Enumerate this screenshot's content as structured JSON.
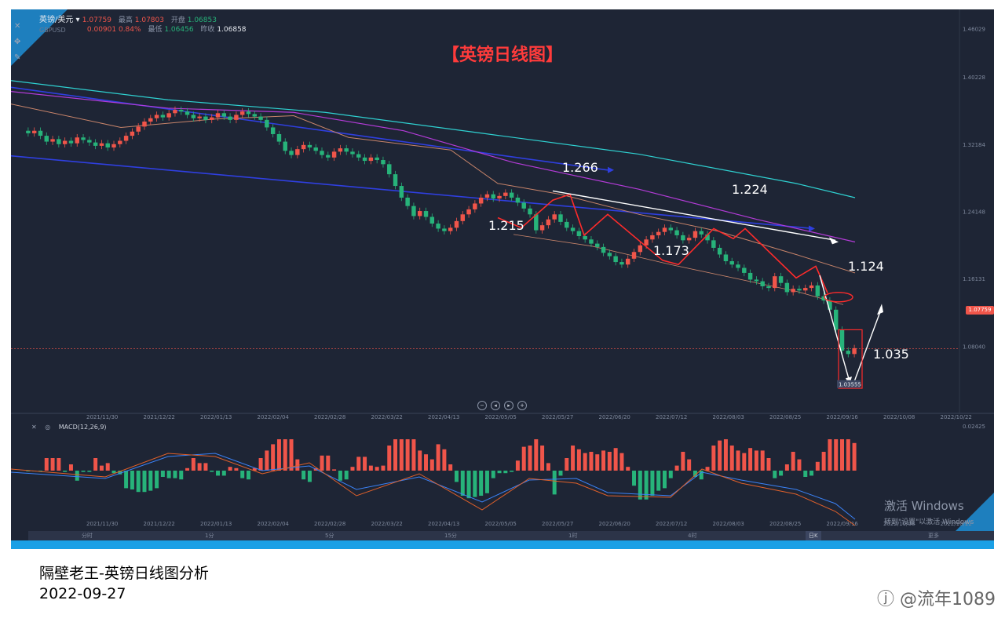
{
  "header": {
    "symbol": "英镑/美元",
    "symbol_code": "GBPUSD",
    "price": "1.07759",
    "change": "0.00901",
    "change_pct": "0.84%",
    "high_label": "最高",
    "high": "1.07803",
    "open_label": "开盘",
    "open": "1.06853",
    "low_label": "最低",
    "low": "1.06456",
    "prev_label": "昨收",
    "prev": "1.06858"
  },
  "title": "【英镑日线图】",
  "current_price_tag": "1.07759",
  "low_tag": "1.03555",
  "annotations": [
    "1.266",
    "1.224",
    "1.215",
    "1.173",
    "1.124",
    "1.035"
  ],
  "price_axis": [
    "1.46029",
    "1.40228",
    "1.32184",
    "1.24148",
    "1.16131",
    "1.08040"
  ],
  "macd": {
    "label": "MACD(12,26,9)",
    "axis": [
      "0.02425",
      "-0.02425"
    ]
  },
  "timeframes": [
    "分时",
    "1分",
    "5分",
    "15分",
    "1时",
    "4时",
    "日K",
    "更多"
  ],
  "active_timeframe": "日K",
  "windows_activation": {
    "line1": "激活 Windows",
    "line2": "转到\"设置\"以激活 Windows"
  },
  "caption": {
    "line1": "隔壁老王-英镑日线图分析",
    "line2": "2022-09-27"
  },
  "watermark": "ⓙ @流年1089",
  "colors": {
    "up": "#f0554a",
    "down": "#27b37a",
    "background": "#1e2535",
    "title": "#ff3b3b",
    "accent": "#1aa0e6"
  },
  "chart_data": {
    "type": "candlestick",
    "symbol": "GBPUSD",
    "timeframe": "daily",
    "x_ticks": [
      "2021/11/30",
      "2021/12/22",
      "2022/01/13",
      "2022/02/04",
      "2022/02/28",
      "2022/03/22",
      "2022/04/13",
      "2022/05/05",
      "2022/05/27",
      "2022/06/20",
      "2022/07/12",
      "2022/08/03",
      "2022/08/25",
      "2022/09/16",
      "2022/10/08",
      "2022/10/22"
    ],
    "ylim": [
      1.0,
      1.47
    ],
    "closes": [
      1.335,
      1.338,
      1.332,
      1.325,
      1.328,
      1.322,
      1.326,
      1.323,
      1.33,
      1.327,
      1.324,
      1.32,
      1.323,
      1.318,
      1.322,
      1.326,
      1.332,
      1.337,
      1.343,
      1.349,
      1.353,
      1.357,
      1.354,
      1.359,
      1.363,
      1.361,
      1.357,
      1.353,
      1.355,
      1.351,
      1.354,
      1.359,
      1.355,
      1.351,
      1.357,
      1.361,
      1.358,
      1.355,
      1.351,
      1.342,
      1.334,
      1.325,
      1.314,
      1.309,
      1.316,
      1.321,
      1.318,
      1.314,
      1.309,
      1.306,
      1.313,
      1.317,
      1.313,
      1.31,
      1.306,
      1.302,
      1.306,
      1.303,
      1.298,
      1.286,
      1.272,
      1.258,
      1.248,
      1.236,
      1.242,
      1.235,
      1.227,
      1.221,
      1.218,
      1.222,
      1.23,
      1.238,
      1.244,
      1.251,
      1.258,
      1.262,
      1.257,
      1.26,
      1.264,
      1.258,
      1.252,
      1.245,
      1.238,
      1.219,
      1.225,
      1.232,
      1.238,
      1.229,
      1.222,
      1.218,
      1.212,
      1.208,
      1.203,
      1.199,
      1.192,
      1.188,
      1.181,
      1.178,
      1.185,
      1.193,
      1.201,
      1.208,
      1.213,
      1.217,
      1.222,
      1.219,
      1.213,
      1.207,
      1.21,
      1.218,
      1.214,
      1.207,
      1.198,
      1.19,
      1.182,
      1.178,
      1.174,
      1.168,
      1.16,
      1.158,
      1.152,
      1.15,
      1.164,
      1.156,
      1.145,
      1.149,
      1.147,
      1.15,
      1.153,
      1.14,
      1.135,
      1.124,
      1.1,
      1.075,
      1.071,
      1.078
    ],
    "annotated_levels": [
      1.266,
      1.224,
      1.215,
      1.173,
      1.124,
      1.035
    ],
    "low": 1.03555,
    "last": 1.07759
  }
}
